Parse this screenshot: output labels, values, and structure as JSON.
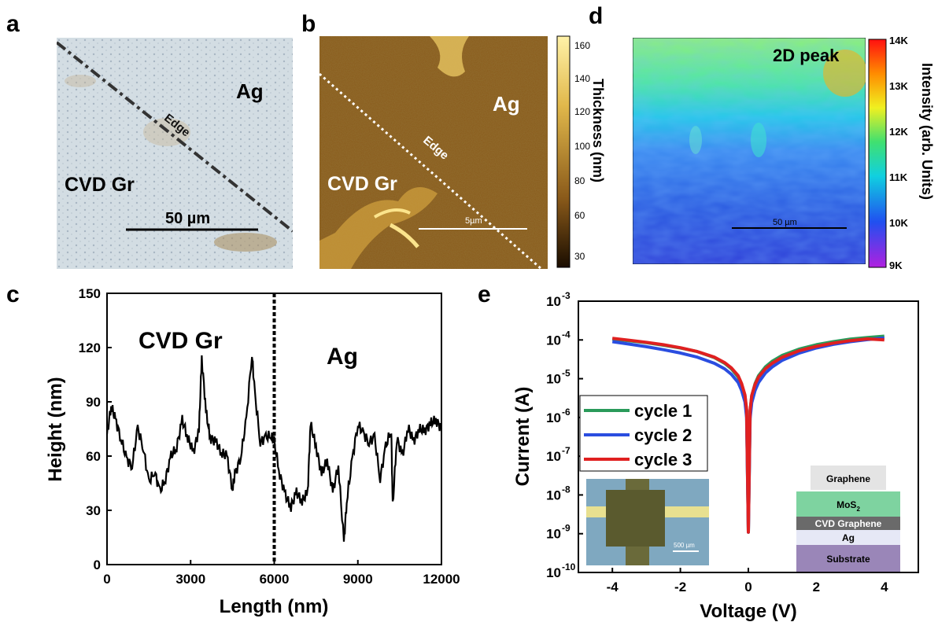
{
  "panels": {
    "a": "a",
    "b": "b",
    "c": "c",
    "d": "d",
    "e": "e"
  },
  "panel_a": {
    "label_ag": "Ag",
    "label_edge": "Edge",
    "label_cvd": "CVD Gr",
    "scale": "50 µm"
  },
  "panel_b": {
    "label_ag": "Ag",
    "label_edge": "Edge",
    "label_cvd": "CVD Gr",
    "scale": "5µm",
    "colorbar": {
      "ticks": [
        "160",
        "140",
        "120",
        "100",
        "80",
        "60",
        "30"
      ],
      "title": "Thickness (nm)",
      "range": [
        30,
        160
      ]
    }
  },
  "panel_d": {
    "label": "2D peak",
    "scale": "50 µm",
    "colorbar": {
      "ticks": [
        "14K",
        "13K",
        "12K",
        "11K",
        "10K",
        "9K"
      ],
      "title": "Intensity (arb. Units)",
      "range": [
        9000,
        14000
      ]
    }
  },
  "chart_data": [
    {
      "type": "line",
      "panel": "c",
      "xlabel": "Length (nm)",
      "ylabel": "Height (nm)",
      "xlim": [
        0,
        12000
      ],
      "ylim": [
        0,
        150
      ],
      "xticks": [
        "0",
        "3000",
        "6000",
        "9000",
        "12000"
      ],
      "yticks": [
        "0",
        "30",
        "60",
        "90",
        "120",
        "150"
      ],
      "annotations": [
        "CVD Gr",
        "Ag"
      ],
      "divider_x": 6000,
      "x": [
        0,
        150,
        300,
        500,
        700,
        900,
        1100,
        1300,
        1500,
        1700,
        1900,
        2100,
        2300,
        2500,
        2700,
        2900,
        3100,
        3300,
        3400,
        3550,
        3700,
        3900,
        4100,
        4300,
        4500,
        4600,
        4800,
        5000,
        5200,
        5300,
        5500,
        5700,
        5900,
        6000,
        6200,
        6400,
        6600,
        6800,
        7000,
        7200,
        7300,
        7500,
        7700,
        7900,
        8100,
        8300,
        8500,
        8600,
        8800,
        9000,
        9200,
        9400,
        9600,
        9800,
        10000,
        10200,
        10250,
        10400,
        10600,
        10800,
        11000,
        11200,
        11400,
        11600,
        11800,
        12000
      ],
      "y": [
        72,
        88,
        80,
        70,
        58,
        55,
        75,
        65,
        45,
        52,
        40,
        48,
        60,
        65,
        80,
        70,
        62,
        75,
        114,
        85,
        70,
        68,
        62,
        60,
        42,
        50,
        60,
        80,
        117,
        95,
        68,
        70,
        72,
        68,
        50,
        38,
        32,
        40,
        35,
        40,
        78,
        65,
        50,
        58,
        40,
        55,
        12,
        35,
        58,
        78,
        72,
        68,
        70,
        48,
        65,
        75,
        32,
        70,
        60,
        76,
        68,
        75,
        74,
        78,
        80,
        75
      ]
    },
    {
      "type": "line",
      "panel": "e",
      "xlabel": "Voltage (V)",
      "ylabel": "Current (A)",
      "xlim": [
        -5,
        5
      ],
      "ylim": [
        1e-10,
        0.001
      ],
      "y_scale": "log",
      "xticks": [
        "-4",
        "-2",
        "0",
        "2",
        "4"
      ],
      "yticks": [
        "10-10",
        "10-9",
        "10-8",
        "10-7",
        "10-6",
        "10-5",
        "10-4",
        "10-3"
      ],
      "x": [
        -4,
        -3.5,
        -3,
        -2.5,
        -2,
        -1.5,
        -1,
        -0.7,
        -0.5,
        -0.3,
        -0.2,
        -0.1,
        -0.05,
        0,
        0.05,
        0.1,
        0.2,
        0.3,
        0.5,
        0.7,
        1,
        1.5,
        2,
        2.5,
        3,
        3.5,
        4
      ],
      "series": [
        {
          "name": "cycle 1",
          "color": "#2a9a5a",
          "y": [
            0.000105,
            9.5e-05,
            8.5e-05,
            7.3e-05,
            6.2e-05,
            5e-05,
            3.5e-05,
            2.5e-05,
            1.8e-05,
            1.1e-05,
            7e-06,
            3.5e-06,
            1.5e-06,
            1.1e-09,
            1.4e-06,
            3.6e-06,
            7.5e-06,
            1.2e-05,
            2e-05,
            2.8e-05,
            4e-05,
            5.8e-05,
            7.5e-05,
            9e-05,
            0.000105,
            0.000115,
            0.000125
          ]
        },
        {
          "name": "cycle 2",
          "color": "#2a4de0",
          "y": [
            9e-05,
            7.8e-05,
            6.7e-05,
            5.6e-05,
            4.6e-05,
            3.6e-05,
            2.5e-05,
            1.8e-05,
            1.3e-05,
            8e-06,
            5e-06,
            2.5e-06,
            1e-06,
            1.1e-09,
            9.5e-07,
            2.4e-06,
            5e-06,
            8e-06,
            1.4e-05,
            2e-05,
            3e-05,
            4.6e-05,
            6.2e-05,
            7.7e-05,
            9e-05,
            0.000102,
            0.000112
          ]
        },
        {
          "name": "cycle 3",
          "color": "#e02020",
          "y": [
            0.00011,
            9.8e-05,
            8.7e-05,
            7.5e-05,
            6.3e-05,
            5e-05,
            3.6e-05,
            2.6e-05,
            1.9e-05,
            1.2e-05,
            7.5e-06,
            3.8e-06,
            1.6e-06,
            1.1e-09,
            1.5e-06,
            3.7e-06,
            7.2e-06,
            1.1e-05,
            1.8e-05,
            2.5e-05,
            3.6e-05,
            5.3e-05,
            6.8e-05,
            8.3e-05,
            9.6e-05,
            0.000106,
            0.0001
          ]
        }
      ],
      "legend": [
        "cycle 1",
        "cycle 2",
        "cycle 3"
      ],
      "inset_scale": "500 µm",
      "stack_layers": [
        "Graphene",
        "MoS2",
        "CVD Graphene",
        "Ag",
        "Substrate"
      ]
    }
  ]
}
